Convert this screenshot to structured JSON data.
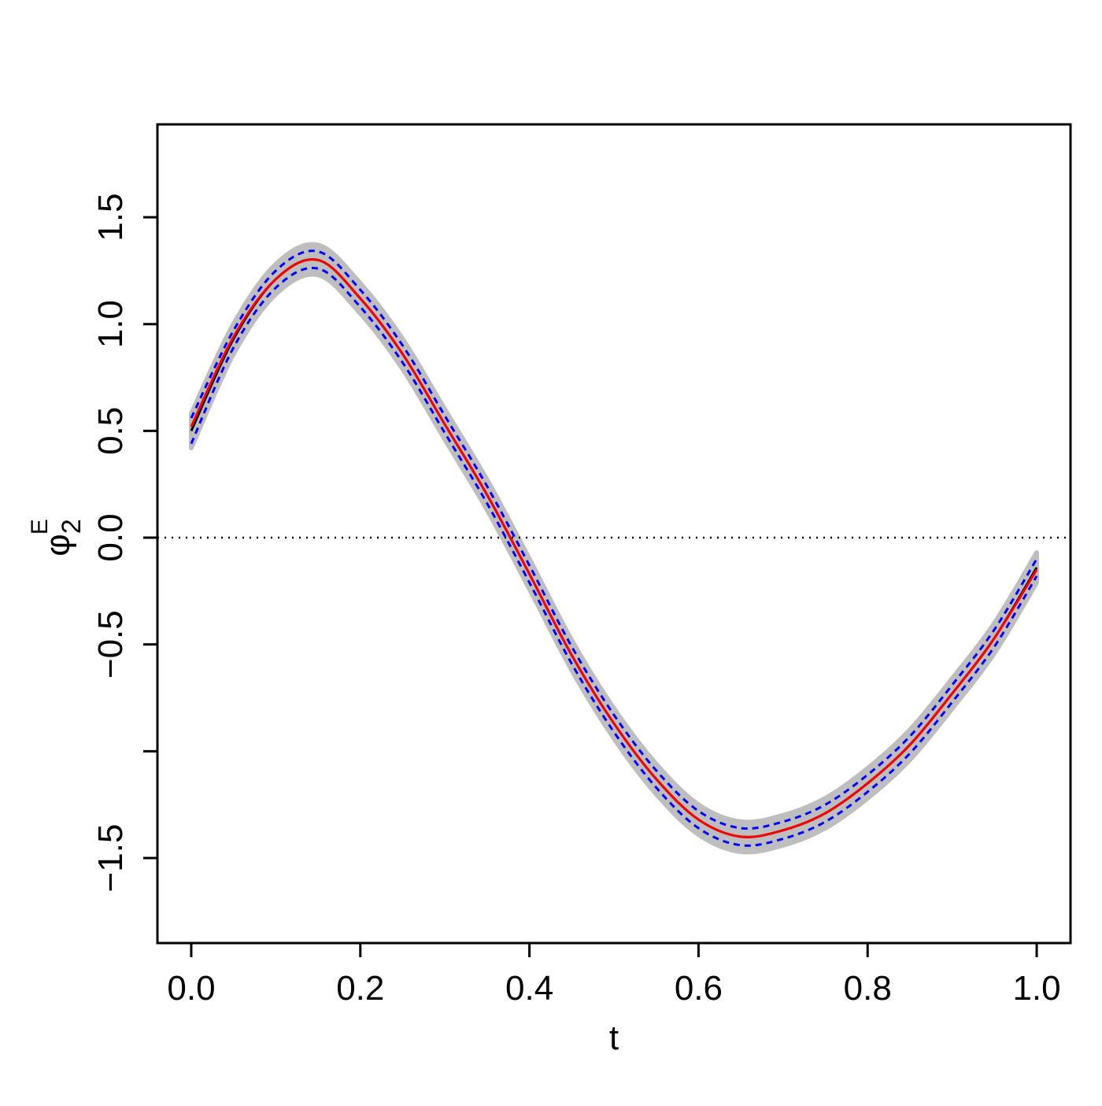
{
  "chart_data": {
    "type": "line",
    "xlabel": "t",
    "ylabel": {
      "symbol": "φ",
      "sub": "2",
      "sup": "E"
    },
    "x": [
      0,
      0.05,
      0.1,
      0.15,
      0.2,
      0.25,
      0.3,
      0.35,
      0.4,
      0.45,
      0.5,
      0.55,
      0.6,
      0.65,
      0.7,
      0.75,
      0.8,
      0.85,
      0.9,
      0.95,
      1.0
    ],
    "band": {
      "color": "#bebebe",
      "upper": [
        0.58,
        1.0,
        1.28,
        1.37,
        1.19,
        0.93,
        0.6,
        0.27,
        -0.1,
        -0.48,
        -0.8,
        -1.06,
        -1.25,
        -1.33,
        -1.3,
        -1.22,
        -1.08,
        -0.9,
        -0.66,
        -0.4,
        -0.07
      ],
      "lower": [
        0.42,
        0.86,
        1.14,
        1.23,
        1.05,
        0.79,
        0.46,
        0.13,
        -0.24,
        -0.62,
        -0.94,
        -1.2,
        -1.39,
        -1.47,
        -1.44,
        -1.36,
        -1.22,
        -1.04,
        -0.8,
        -0.54,
        -0.21
      ]
    },
    "series": [
      {
        "color": "#0000ff",
        "dashed": true,
        "values": [
          0.56,
          0.97,
          1.25,
          1.34,
          1.16,
          0.9,
          0.57,
          0.24,
          -0.13,
          -0.51,
          -0.83,
          -1.09,
          -1.28,
          -1.36,
          -1.33,
          -1.25,
          -1.11,
          -0.93,
          -0.69,
          -0.43,
          -0.1
        ]
      },
      {
        "color": "#0000ff",
        "dashed": true,
        "values": [
          0.44,
          0.89,
          1.17,
          1.26,
          1.08,
          0.82,
          0.49,
          0.16,
          -0.21,
          -0.59,
          -0.91,
          -1.17,
          -1.36,
          -1.44,
          -1.41,
          -1.33,
          -1.19,
          -1.01,
          -0.77,
          -0.51,
          -0.18
        ]
      },
      {
        "color": "#000000",
        "dashed": false,
        "values": [
          0.5,
          0.93,
          1.21,
          1.3,
          1.12,
          0.86,
          0.53,
          0.2,
          -0.17,
          -0.55,
          -0.87,
          -1.13,
          -1.32,
          -1.4,
          -1.37,
          -1.29,
          -1.15,
          -0.97,
          -0.73,
          -0.47,
          -0.14
        ]
      },
      {
        "color": "#ff0000",
        "dashed": false,
        "values": [
          0.52,
          0.94,
          1.21,
          1.3,
          1.12,
          0.86,
          0.53,
          0.2,
          -0.17,
          -0.55,
          -0.87,
          -1.13,
          -1.32,
          -1.4,
          -1.37,
          -1.29,
          -1.15,
          -0.97,
          -0.73,
          -0.47,
          -0.15
        ]
      }
    ],
    "hline": 0,
    "xlim": [
      -0.04,
      1.04
    ],
    "ylim": [
      -1.898,
      1.935
    ],
    "xticks": [
      {
        "value": 0,
        "label": "0.0"
      },
      0.2,
      0.4,
      0.6,
      0.8,
      {
        "value": 1,
        "label": "1.0"
      }
    ],
    "yticks": [
      {
        "value": -1.5,
        "label": "−1.5"
      },
      {
        "value": -1,
        "label": null
      },
      {
        "value": -0.5,
        "label": "−0.5"
      },
      {
        "value": 0,
        "label": "0.0"
      },
      0.5,
      {
        "value": 1,
        "label": "1.0"
      },
      1.5
    ]
  }
}
